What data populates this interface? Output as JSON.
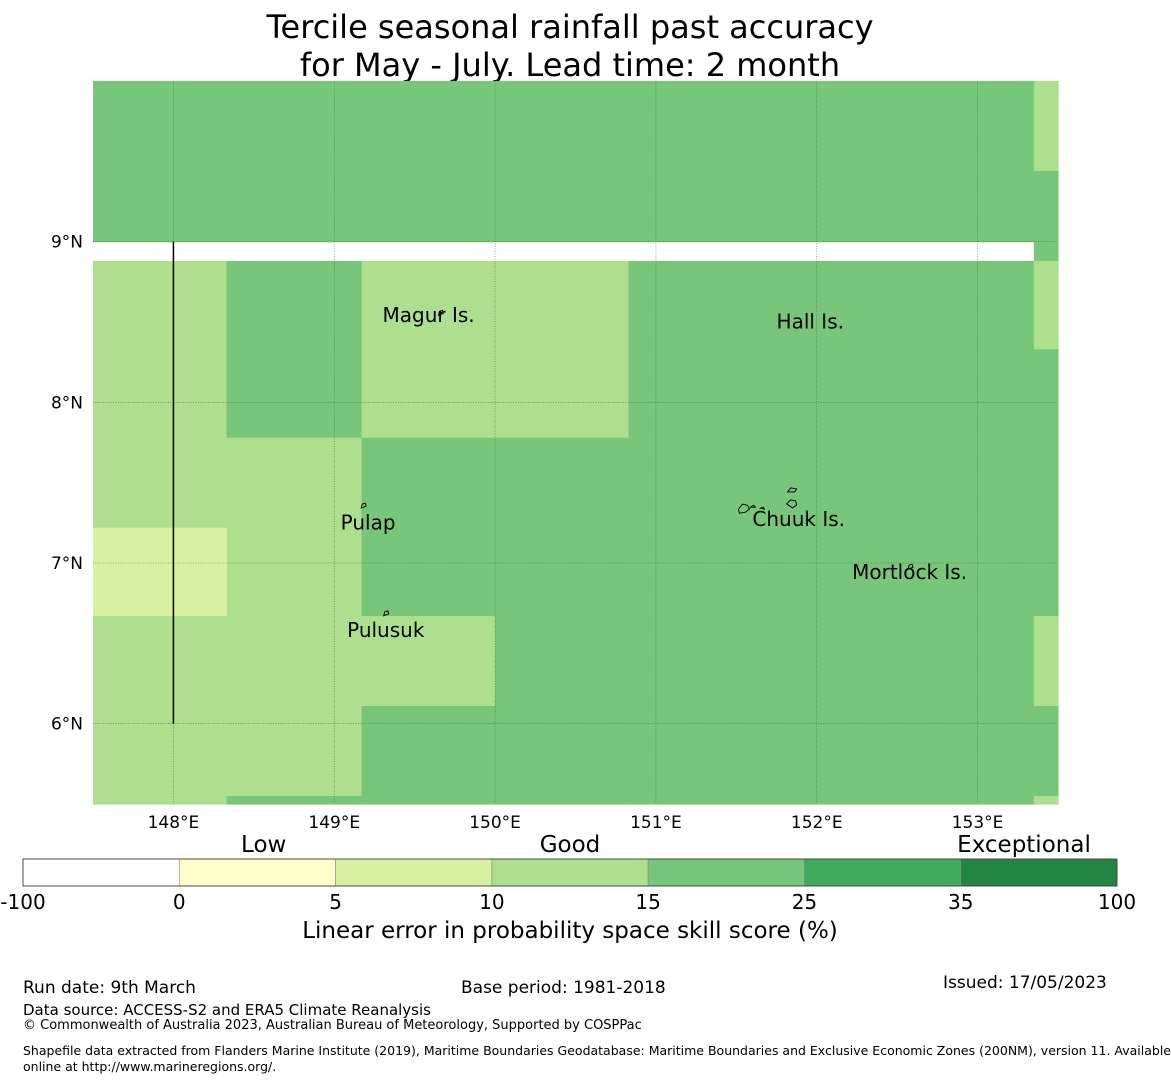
{
  "title": {
    "line1": "Tercile seasonal rainfall past accuracy",
    "line2": "for May - July. Lead time: 2 month"
  },
  "map": {
    "lon_range": [
      147.5,
      153.5
    ],
    "lat_range": [
      5.5,
      10.0
    ],
    "lon_ticks": [
      {
        "value": 148,
        "label": "148°E"
      },
      {
        "value": 149,
        "label": "149°E"
      },
      {
        "value": 150,
        "label": "150°E"
      },
      {
        "value": 151,
        "label": "151°E"
      },
      {
        "value": 152,
        "label": "152°E"
      },
      {
        "value": 153,
        "label": "153°E"
      }
    ],
    "lat_ticks": [
      {
        "value": 9,
        "label": "9°N"
      },
      {
        "value": 8,
        "label": "8°N"
      },
      {
        "value": 7,
        "label": "7°N"
      },
      {
        "value": 6,
        "label": "6°N"
      }
    ],
    "colors": {
      "cat_0_5": "#d9efa2",
      "cat_5_10": "#d9efa2",
      "cat_10_15": "#addf8e",
      "cat_15_25": "#78c679",
      "cat_25_35": "#41ab5d",
      "cat_35_100": "#238443",
      "gridline": "#2e5c2e",
      "boundary": "#000000"
    },
    "skill_cells": [
      {
        "lon": [
          147.5,
          153.35
        ],
        "lat": [
          9.0,
          10.0
        ],
        "cat": "cat_15_25"
      },
      {
        "lon": [
          153.35,
          153.5
        ],
        "lat": [
          9.44,
          10.0
        ],
        "cat": "cat_10_15"
      },
      {
        "lon": [
          153.35,
          153.5
        ],
        "lat": [
          8.88,
          9.44
        ],
        "cat": "cat_15_25"
      },
      {
        "lon": [
          147.5,
          148.33
        ],
        "lat": [
          7.22,
          8.88
        ],
        "cat": "cat_10_15"
      },
      {
        "lon": [
          148.33,
          149.17
        ],
        "lat": [
          7.78,
          8.88
        ],
        "cat": "cat_15_25"
      },
      {
        "lon": [
          149.17,
          150.83
        ],
        "lat": [
          7.78,
          8.88
        ],
        "cat": "cat_10_15"
      },
      {
        "lon": [
          150.83,
          153.35
        ],
        "lat": [
          5.5,
          8.88
        ],
        "cat": "cat_15_25"
      },
      {
        "lon": [
          153.35,
          153.5
        ],
        "lat": [
          8.33,
          8.88
        ],
        "cat": "cat_10_15"
      },
      {
        "lon": [
          153.35,
          153.5
        ],
        "lat": [
          6.67,
          8.33
        ],
        "cat": "cat_15_25"
      },
      {
        "lon": [
          153.35,
          153.5
        ],
        "lat": [
          6.11,
          6.67
        ],
        "cat": "cat_10_15"
      },
      {
        "lon": [
          153.35,
          153.5
        ],
        "lat": [
          5.55,
          6.11
        ],
        "cat": "cat_15_25"
      },
      {
        "lon": [
          153.35,
          153.5
        ],
        "lat": [
          5.5,
          5.55
        ],
        "cat": "cat_10_15"
      },
      {
        "lon": [
          148.33,
          149.17
        ],
        "lat": [
          6.11,
          7.78
        ],
        "cat": "cat_10_15"
      },
      {
        "lon": [
          147.5,
          148.33
        ],
        "lat": [
          6.67,
          7.22
        ],
        "cat": "cat_5_10"
      },
      {
        "lon": [
          147.5,
          148.33
        ],
        "lat": [
          5.5,
          6.67
        ],
        "cat": "cat_10_15"
      },
      {
        "lon": [
          149.17,
          150.83
        ],
        "lat": [
          6.67,
          7.78
        ],
        "cat": "cat_15_25"
      },
      {
        "lon": [
          149.17,
          150.0
        ],
        "lat": [
          6.11,
          6.67
        ],
        "cat": "cat_10_15"
      },
      {
        "lon": [
          150.0,
          150.83
        ],
        "lat": [
          5.5,
          6.67
        ],
        "cat": "cat_15_25"
      },
      {
        "lon": [
          148.33,
          149.17
        ],
        "lat": [
          5.55,
          6.11
        ],
        "cat": "cat_10_15"
      },
      {
        "lon": [
          148.33,
          149.17
        ],
        "lat": [
          5.5,
          5.55
        ],
        "cat": "cat_15_25"
      },
      {
        "lon": [
          149.17,
          150.0
        ],
        "lat": [
          5.5,
          6.11
        ],
        "cat": "cat_15_25"
      }
    ],
    "boundary_line": {
      "lon": 148.0,
      "lat": [
        6.0,
        9.0
      ]
    },
    "places": [
      {
        "name": "Magur Is.",
        "lon": 149.3,
        "lat": 8.5
      },
      {
        "name": "Hall Is.",
        "lon": 151.75,
        "lat": 8.46
      },
      {
        "name": "Pulap",
        "lon": 149.04,
        "lat": 7.21
      },
      {
        "name": "Chuuk Is.",
        "lon": 151.6,
        "lat": 7.23
      },
      {
        "name": "Mortlock Is.",
        "lon": 152.22,
        "lat": 6.9
      },
      {
        "name": "Pulusuk",
        "lon": 149.08,
        "lat": 6.54
      }
    ],
    "islands": [
      {
        "name": "Magur",
        "lon": 149.66,
        "lat": 8.56
      },
      {
        "name": "Pulap",
        "lon": 149.18,
        "lat": 7.36
      },
      {
        "name": "Pulusuk",
        "lon": 149.32,
        "lat": 6.69
      },
      {
        "name": "Chuuk-west",
        "lon": 151.6,
        "lat": 7.36
      },
      {
        "name": "Chuuk-east",
        "lon": 151.85,
        "lat": 7.43
      },
      {
        "name": "Mortlock",
        "lon": 152.58,
        "lat": 6.98
      }
    ]
  },
  "colorbar": {
    "category_labels": [
      {
        "label": "Low",
        "pos": 0.22
      },
      {
        "label": "Good",
        "pos": 0.5
      },
      {
        "label": "Exceptional",
        "pos": 0.915
      }
    ],
    "tick_labels": [
      "-100",
      "0",
      "5",
      "10",
      "15",
      "25",
      "35",
      "100"
    ],
    "colors": [
      "#ffffff",
      "#ffffcc",
      "#d9efa2",
      "#addf8e",
      "#78c679",
      "#41ab5d",
      "#238443"
    ],
    "label": "Linear error in probability space skill score (%)"
  },
  "footer": {
    "run_date": "Run date: 9th March",
    "base_period": "Base period: 1981-2018",
    "issued": "Issued: 17/05/2023",
    "data_source": "Data source: ACCESS-S2 and ERA5 Climate Reanalysis",
    "copyright": "© Commonwealth of Australia 2023, Australian Bureau of Meteorology, Supported by COSPPac",
    "shapefile_line1": "Shapefile data extracted from Flanders Marine Institute (2019), Maritime Boundaries Geodatabase: Maritime Boundaries and Exclusive Economic Zones (200NM), version 11. Available",
    "shapefile_line2": "online at http://www.marineregions.org/."
  }
}
